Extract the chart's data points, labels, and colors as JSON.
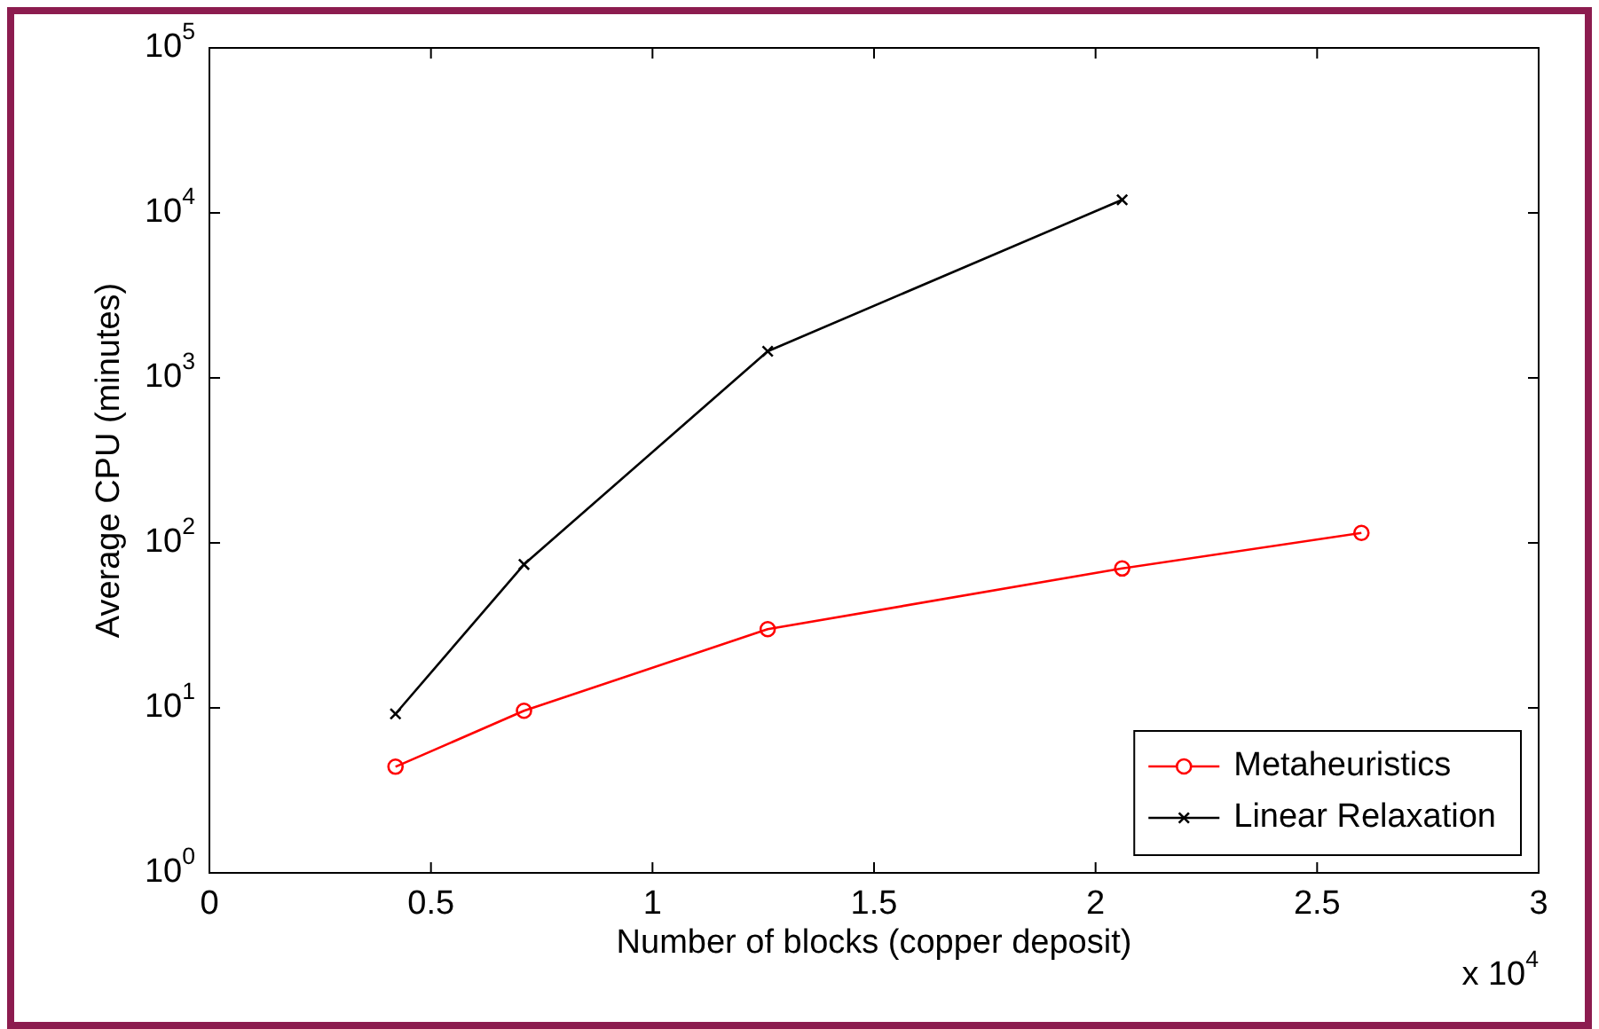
{
  "chart_data": {
    "type": "line",
    "xlabel": "Number of blocks (copper deposit)",
    "ylabel": "Average CPU (minutes)",
    "x": [
      0.42,
      0.71,
      1.26,
      2.06,
      2.6
    ],
    "series": [
      {
        "name": "Metaheuristics",
        "color": "#ff0000",
        "marker": "circle",
        "values": [
          4.4,
          9.6,
          30,
          70,
          115
        ]
      },
      {
        "name": "Linear Relaxation",
        "color": "#000000",
        "marker": "cross",
        "values": [
          9.2,
          74,
          1450,
          12000,
          null
        ]
      }
    ],
    "log": "y",
    "xlim": [
      0,
      3
    ],
    "xticks": [
      0,
      0.5,
      1,
      1.5,
      2,
      2.5,
      3
    ],
    "ylim": [
      1,
      100000
    ],
    "yticks": [
      {
        "value": 1,
        "label": "10$^{0}$"
      },
      {
        "value": 10,
        "label": "10$^{1}$"
      },
      {
        "value": 100,
        "label": "10$^{2}$"
      },
      {
        "value": 1000,
        "label": "10$^{3}$"
      },
      {
        "value": 10000,
        "label": "10$^{4}$"
      },
      {
        "value": 100000,
        "label": "10$^{5}$"
      }
    ],
    "annotations": [
      "x 10$^{4}$"
    ],
    "legend": "bottom right",
    "grid": false,
    "line_style": "solid"
  }
}
